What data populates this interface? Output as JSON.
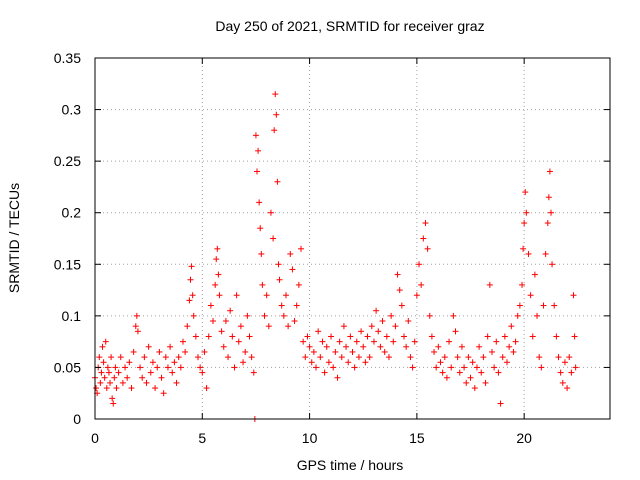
{
  "chart_data": {
    "type": "scatter",
    "title": "Day 250 of 2021, SRMTID for receiver graz",
    "xlabel": "GPS time / hours",
    "ylabel": "SRMTID / TECUs",
    "xlim": [
      0,
      24
    ],
    "ylim": [
      0,
      0.35
    ],
    "grid": true,
    "marker": "plus",
    "marker_color": "#ff0000",
    "x_ticks": [
      "0",
      "5",
      "10",
      "15",
      "20"
    ],
    "y_ticks": [
      "0",
      "0.05",
      "0.1",
      "0.15",
      "0.2",
      "0.25",
      "0.3",
      "0.35"
    ],
    "series": [
      {
        "name": "graz",
        "points": [
          [
            0.0,
            0.04
          ],
          [
            0.05,
            0.03
          ],
          [
            0.1,
            0.025
          ],
          [
            0.15,
            0.05
          ],
          [
            0.2,
            0.06
          ],
          [
            0.25,
            0.035
          ],
          [
            0.3,
            0.045
          ],
          [
            0.35,
            0.07
          ],
          [
            0.4,
            0.055
          ],
          [
            0.45,
            0.04
          ],
          [
            0.5,
            0.075
          ],
          [
            0.55,
            0.03
          ],
          [
            0.6,
            0.05
          ],
          [
            0.65,
            0.045
          ],
          [
            0.7,
            0.035
          ],
          [
            0.75,
            0.06
          ],
          [
            0.8,
            0.02
          ],
          [
            0.85,
            0.015
          ],
          [
            0.9,
            0.04
          ],
          [
            0.95,
            0.05
          ],
          [
            1.0,
            0.03
          ],
          [
            1.1,
            0.045
          ],
          [
            1.2,
            0.06
          ],
          [
            1.3,
            0.035
          ],
          [
            1.4,
            0.05
          ],
          [
            1.5,
            0.04
          ],
          [
            1.6,
            0.055
          ],
          [
            1.7,
            0.03
          ],
          [
            1.8,
            0.065
          ],
          [
            1.9,
            0.09
          ],
          [
            1.95,
            0.1
          ],
          [
            2.0,
            0.085
          ],
          [
            2.1,
            0.05
          ],
          [
            2.2,
            0.04
          ],
          [
            2.3,
            0.06
          ],
          [
            2.4,
            0.035
          ],
          [
            2.5,
            0.07
          ],
          [
            2.6,
            0.045
          ],
          [
            2.7,
            0.055
          ],
          [
            2.8,
            0.03
          ],
          [
            2.9,
            0.05
          ],
          [
            3.0,
            0.065
          ],
          [
            3.1,
            0.04
          ],
          [
            3.2,
            0.025
          ],
          [
            3.3,
            0.06
          ],
          [
            3.4,
            0.05
          ],
          [
            3.5,
            0.07
          ],
          [
            3.6,
            0.045
          ],
          [
            3.7,
            0.055
          ],
          [
            3.8,
            0.035
          ],
          [
            3.9,
            0.06
          ],
          [
            4.0,
            0.05
          ],
          [
            4.1,
            0.075
          ],
          [
            4.2,
            0.065
          ],
          [
            4.3,
            0.09
          ],
          [
            4.4,
            0.115
          ],
          [
            4.45,
            0.135
          ],
          [
            4.5,
            0.148
          ],
          [
            4.55,
            0.12
          ],
          [
            4.6,
            0.1
          ],
          [
            4.7,
            0.08
          ],
          [
            4.8,
            0.06
          ],
          [
            4.9,
            0.05
          ],
          [
            5.0,
            0.045
          ],
          [
            5.1,
            0.065
          ],
          [
            5.2,
            0.03
          ],
          [
            5.3,
            0.08
          ],
          [
            5.4,
            0.11
          ],
          [
            5.5,
            0.095
          ],
          [
            5.6,
            0.13
          ],
          [
            5.65,
            0.155
          ],
          [
            5.7,
            0.165
          ],
          [
            5.75,
            0.14
          ],
          [
            5.8,
            0.12
          ],
          [
            5.9,
            0.085
          ],
          [
            6.0,
            0.07
          ],
          [
            6.1,
            0.095
          ],
          [
            6.2,
            0.06
          ],
          [
            6.3,
            0.105
          ],
          [
            6.4,
            0.08
          ],
          [
            6.5,
            0.05
          ],
          [
            6.6,
            0.12
          ],
          [
            6.7,
            0.075
          ],
          [
            6.8,
            0.09
          ],
          [
            6.9,
            0.055
          ],
          [
            7.0,
            0.065
          ],
          [
            7.1,
            0.1
          ],
          [
            7.2,
            0.08
          ],
          [
            7.3,
            0.06
          ],
          [
            7.4,
            0.045
          ],
          [
            7.45,
            0.0
          ],
          [
            7.5,
            0.275
          ],
          [
            7.55,
            0.24
          ],
          [
            7.6,
            0.26
          ],
          [
            7.65,
            0.21
          ],
          [
            7.7,
            0.185
          ],
          [
            7.75,
            0.16
          ],
          [
            7.8,
            0.13
          ],
          [
            7.9,
            0.1
          ],
          [
            8.0,
            0.12
          ],
          [
            8.1,
            0.09
          ],
          [
            8.2,
            0.2
          ],
          [
            8.3,
            0.175
          ],
          [
            8.35,
            0.28
          ],
          [
            8.4,
            0.315
          ],
          [
            8.45,
            0.295
          ],
          [
            8.5,
            0.23
          ],
          [
            8.55,
            0.15
          ],
          [
            8.6,
            0.135
          ],
          [
            8.7,
            0.11
          ],
          [
            8.8,
            0.1
          ],
          [
            8.9,
            0.12
          ],
          [
            9.0,
            0.09
          ],
          [
            9.1,
            0.16
          ],
          [
            9.2,
            0.145
          ],
          [
            9.3,
            0.095
          ],
          [
            9.4,
            0.11
          ],
          [
            9.5,
            0.13
          ],
          [
            9.6,
            0.165
          ],
          [
            9.7,
            0.075
          ],
          [
            9.8,
            0.06
          ],
          [
            9.9,
            0.08
          ],
          [
            10.0,
            0.07
          ],
          [
            10.1,
            0.055
          ],
          [
            10.2,
            0.065
          ],
          [
            10.3,
            0.05
          ],
          [
            10.4,
            0.085
          ],
          [
            10.5,
            0.06
          ],
          [
            10.6,
            0.075
          ],
          [
            10.7,
            0.045
          ],
          [
            10.8,
            0.07
          ],
          [
            10.9,
            0.055
          ],
          [
            11.0,
            0.08
          ],
          [
            11.1,
            0.05
          ],
          [
            11.2,
            0.065
          ],
          [
            11.3,
            0.04
          ],
          [
            11.4,
            0.075
          ],
          [
            11.5,
            0.06
          ],
          [
            11.6,
            0.09
          ],
          [
            11.7,
            0.07
          ],
          [
            11.8,
            0.055
          ],
          [
            11.9,
            0.08
          ],
          [
            12.0,
            0.065
          ],
          [
            12.1,
            0.05
          ],
          [
            12.2,
            0.075
          ],
          [
            12.3,
            0.06
          ],
          [
            12.4,
            0.085
          ],
          [
            12.5,
            0.07
          ],
          [
            12.6,
            0.055
          ],
          [
            12.7,
            0.08
          ],
          [
            12.8,
            0.06
          ],
          [
            12.9,
            0.09
          ],
          [
            13.0,
            0.075
          ],
          [
            13.1,
            0.105
          ],
          [
            13.2,
            0.085
          ],
          [
            13.3,
            0.07
          ],
          [
            13.4,
            0.095
          ],
          [
            13.5,
            0.065
          ],
          [
            13.6,
            0.08
          ],
          [
            13.7,
            0.06
          ],
          [
            13.8,
            0.1
          ],
          [
            13.9,
            0.075
          ],
          [
            14.0,
            0.09
          ],
          [
            14.1,
            0.14
          ],
          [
            14.2,
            0.125
          ],
          [
            14.3,
            0.11
          ],
          [
            14.4,
            0.08
          ],
          [
            14.5,
            0.07
          ],
          [
            14.6,
            0.095
          ],
          [
            14.7,
            0.06
          ],
          [
            14.8,
            0.05
          ],
          [
            14.9,
            0.075
          ],
          [
            15.0,
            0.12
          ],
          [
            15.1,
            0.15
          ],
          [
            15.2,
            0.13
          ],
          [
            15.3,
            0.175
          ],
          [
            15.4,
            0.19
          ],
          [
            15.5,
            0.165
          ],
          [
            15.6,
            0.1
          ],
          [
            15.7,
            0.08
          ],
          [
            15.8,
            0.065
          ],
          [
            15.9,
            0.05
          ],
          [
            16.0,
            0.07
          ],
          [
            16.1,
            0.055
          ],
          [
            16.2,
            0.045
          ],
          [
            16.3,
            0.06
          ],
          [
            16.4,
            0.04
          ],
          [
            16.5,
            0.075
          ],
          [
            16.6,
            0.05
          ],
          [
            16.7,
            0.1
          ],
          [
            16.8,
            0.085
          ],
          [
            16.9,
            0.06
          ],
          [
            17.0,
            0.045
          ],
          [
            17.1,
            0.07
          ],
          [
            17.2,
            0.05
          ],
          [
            17.3,
            0.035
          ],
          [
            17.4,
            0.06
          ],
          [
            17.5,
            0.04
          ],
          [
            17.6,
            0.055
          ],
          [
            17.7,
            0.03
          ],
          [
            17.8,
            0.05
          ],
          [
            17.9,
            0.07
          ],
          [
            18.0,
            0.045
          ],
          [
            18.1,
            0.06
          ],
          [
            18.2,
            0.035
          ],
          [
            18.3,
            0.08
          ],
          [
            18.4,
            0.13
          ],
          [
            18.5,
            0.065
          ],
          [
            18.6,
            0.05
          ],
          [
            18.7,
            0.075
          ],
          [
            18.8,
            0.045
          ],
          [
            18.9,
            0.015
          ],
          [
            19.0,
            0.06
          ],
          [
            19.1,
            0.08
          ],
          [
            19.2,
            0.055
          ],
          [
            19.3,
            0.07
          ],
          [
            19.4,
            0.09
          ],
          [
            19.5,
            0.065
          ],
          [
            19.6,
            0.075
          ],
          [
            19.7,
            0.1
          ],
          [
            19.8,
            0.11
          ],
          [
            19.9,
            0.13
          ],
          [
            19.95,
            0.165
          ],
          [
            20.0,
            0.19
          ],
          [
            20.05,
            0.22
          ],
          [
            20.1,
            0.2
          ],
          [
            20.2,
            0.16
          ],
          [
            20.3,
            0.12
          ],
          [
            20.4,
            0.08
          ],
          [
            20.5,
            0.14
          ],
          [
            20.6,
            0.1
          ],
          [
            20.7,
            0.06
          ],
          [
            20.8,
            0.05
          ],
          [
            20.9,
            0.11
          ],
          [
            21.0,
            0.16
          ],
          [
            21.1,
            0.19
          ],
          [
            21.15,
            0.215
          ],
          [
            21.2,
            0.24
          ],
          [
            21.25,
            0.2
          ],
          [
            21.3,
            0.15
          ],
          [
            21.4,
            0.11
          ],
          [
            21.5,
            0.08
          ],
          [
            21.6,
            0.06
          ],
          [
            21.7,
            0.045
          ],
          [
            21.8,
            0.035
          ],
          [
            21.9,
            0.055
          ],
          [
            22.0,
            0.03
          ],
          [
            22.1,
            0.06
          ],
          [
            22.2,
            0.045
          ],
          [
            22.3,
            0.12
          ],
          [
            22.35,
            0.08
          ],
          [
            22.4,
            0.05
          ]
        ]
      }
    ]
  }
}
